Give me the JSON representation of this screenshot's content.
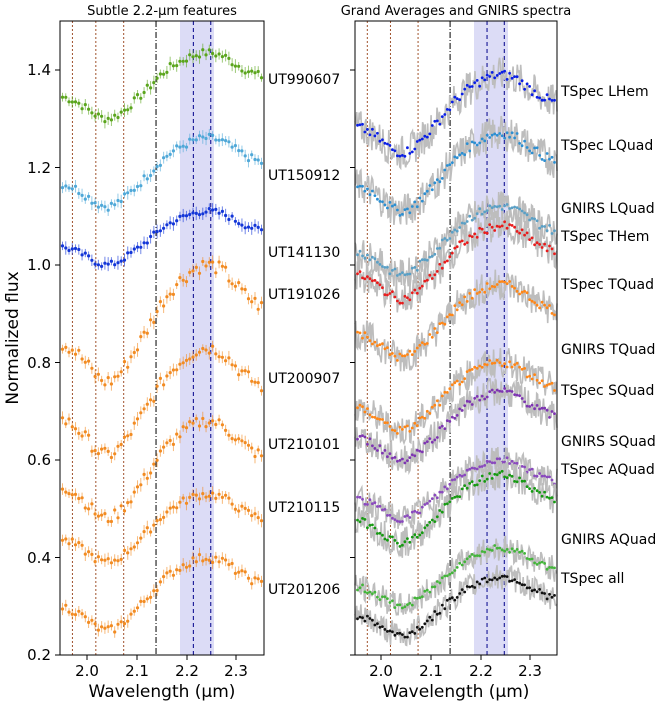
{
  "chart_data": [
    {
      "type": "scatter",
      "title": "Subtle 2.2-μm features",
      "xlabel": "Wavelength (μm)",
      "ylabel": "Normalized flux",
      "xlim": [
        1.94,
        2.35
      ],
      "ylim": [
        0.2,
        1.5
      ],
      "xticks": [
        "2.0",
        "2.1",
        "2.2",
        "2.3"
      ],
      "yticks": [
        "0.2",
        "0.4",
        "0.6",
        "0.8",
        "1.0",
        "1.2",
        "1.4"
      ],
      "vlines_dotted": [
        1.965,
        2.012,
        2.068
      ],
      "vlines_dashdot": [
        2.133
      ],
      "vlines_dashed": [
        2.208,
        2.243
      ],
      "band": [
        2.185,
        2.25
      ],
      "series": [
        {
          "name": "UT990607",
          "color": "#5aa51c",
          "offset": 1.3,
          "amp": 0.135,
          "ypos": 1.385
        },
        {
          "name": "UT150912",
          "color": "#4fa8d8",
          "offset": 1.12,
          "amp": 0.14,
          "ypos": 1.185
        },
        {
          "name": "UT141130",
          "color": "#1336d8",
          "offset": 1.0,
          "amp": 0.11,
          "ypos": 1.025
        },
        {
          "name": "UT191026",
          "color": "#f28b22",
          "offset": 0.76,
          "amp": 0.24,
          "ypos": 0.945
        },
        {
          "name": "UT200907",
          "color": "#f28b22",
          "offset": 0.61,
          "amp": 0.22,
          "ypos": 0.765
        },
        {
          "name": "UT210101",
          "color": "#f28b22",
          "offset": 0.48,
          "amp": 0.2,
          "ypos": 0.605
        },
        {
          "name": "UT210115",
          "color": "#f28b22",
          "offset": 0.39,
          "amp": 0.14,
          "ypos": 0.475
        },
        {
          "name": "UT201206",
          "color": "#f28b22",
          "offset": 0.25,
          "amp": 0.15,
          "ypos": 0.335
        }
      ]
    },
    {
      "type": "scatter",
      "title": "Grand Averages and GNIRS spectra",
      "xlabel": "Wavelength (μm)",
      "xlim": [
        1.94,
        2.35
      ],
      "xticks": [
        "2.0",
        "2.1",
        "2.2",
        "2.3"
      ],
      "vlines_dotted": [
        1.965,
        2.012,
        2.068
      ],
      "vlines_dashdot": [
        2.133
      ],
      "vlines_dashed": [
        2.208,
        2.243
      ],
      "band": [
        2.185,
        2.25
      ],
      "series": [
        {
          "name": "TSpec LHem",
          "color": "#0a1fe6",
          "offset": 1.23,
          "amp": 0.16,
          "ypos": 1.365
        },
        {
          "name": "TSpec LQuad",
          "color": "#2c8fd2",
          "offset": 1.11,
          "amp": 0.16,
          "ypos": 1.225
        },
        {
          "name": "GNIRS LQuad",
          "color": "#5aa0c6",
          "offset": 0.98,
          "amp": 0.14,
          "ypos": 1.055
        },
        {
          "name": "TSpec THem",
          "color": "#e81c1c",
          "offset": 0.93,
          "amp": 0.15,
          "ypos": 0.995
        },
        {
          "name": "TSpec TQuad",
          "color": "#ff8617",
          "offset": 0.81,
          "amp": 0.15,
          "ypos": 0.895
        },
        {
          "name": "GNIRS TQuad",
          "color": "#ff8617",
          "offset": 0.66,
          "amp": 0.14,
          "ypos": 0.785
        },
        {
          "name": "TSpec SQuad",
          "color": "#7e35b2",
          "offset": 0.6,
          "amp": 0.14,
          "ypos": 0.665
        },
        {
          "name": "GNIRS SQuad",
          "color": "#8a49be",
          "offset": 0.48,
          "amp": 0.12,
          "ypos": 0.545
        },
        {
          "name": "TSpec AQuad",
          "color": "#169a12",
          "offset": 0.43,
          "amp": 0.14,
          "ypos": 0.475
        },
        {
          "name": "GNIRS AQuad",
          "color": "#43b53a",
          "offset": 0.3,
          "amp": 0.12,
          "ypos": 0.355
        },
        {
          "name": "TSpec all",
          "color": "#111111",
          "offset": 0.24,
          "amp": 0.12,
          "ypos": 0.265
        }
      ]
    }
  ]
}
